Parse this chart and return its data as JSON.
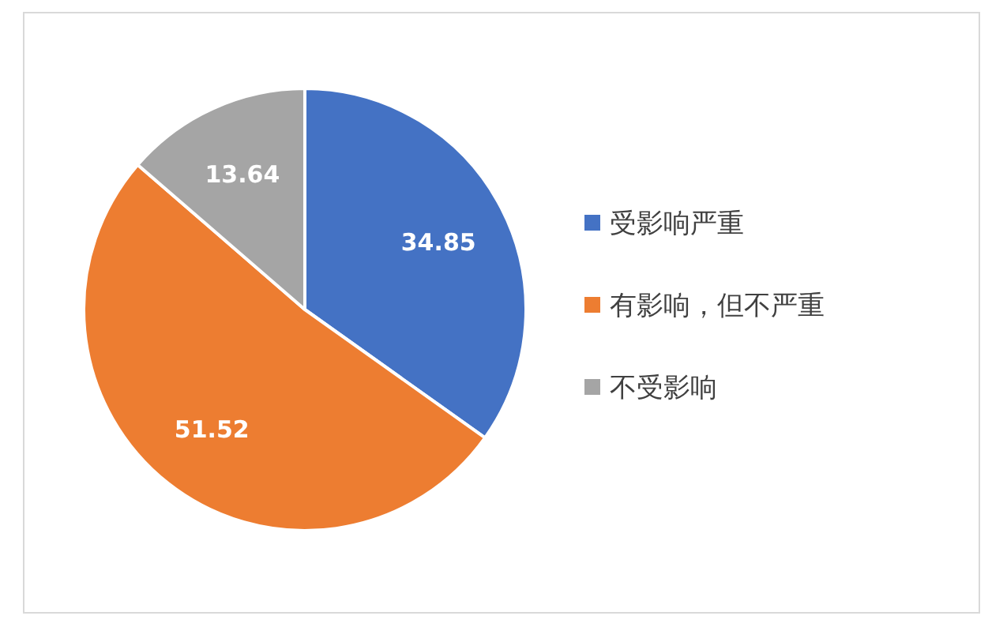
{
  "chart_data": {
    "type": "pie",
    "categories": [
      "受影响严重",
      "有影响，但不严重",
      "不受影响"
    ],
    "values": [
      34.85,
      51.52,
      13.64
    ],
    "colors": [
      "#4472c4",
      "#ed7d31",
      "#a5a5a5"
    ],
    "data_labels": true,
    "legend": "right"
  }
}
